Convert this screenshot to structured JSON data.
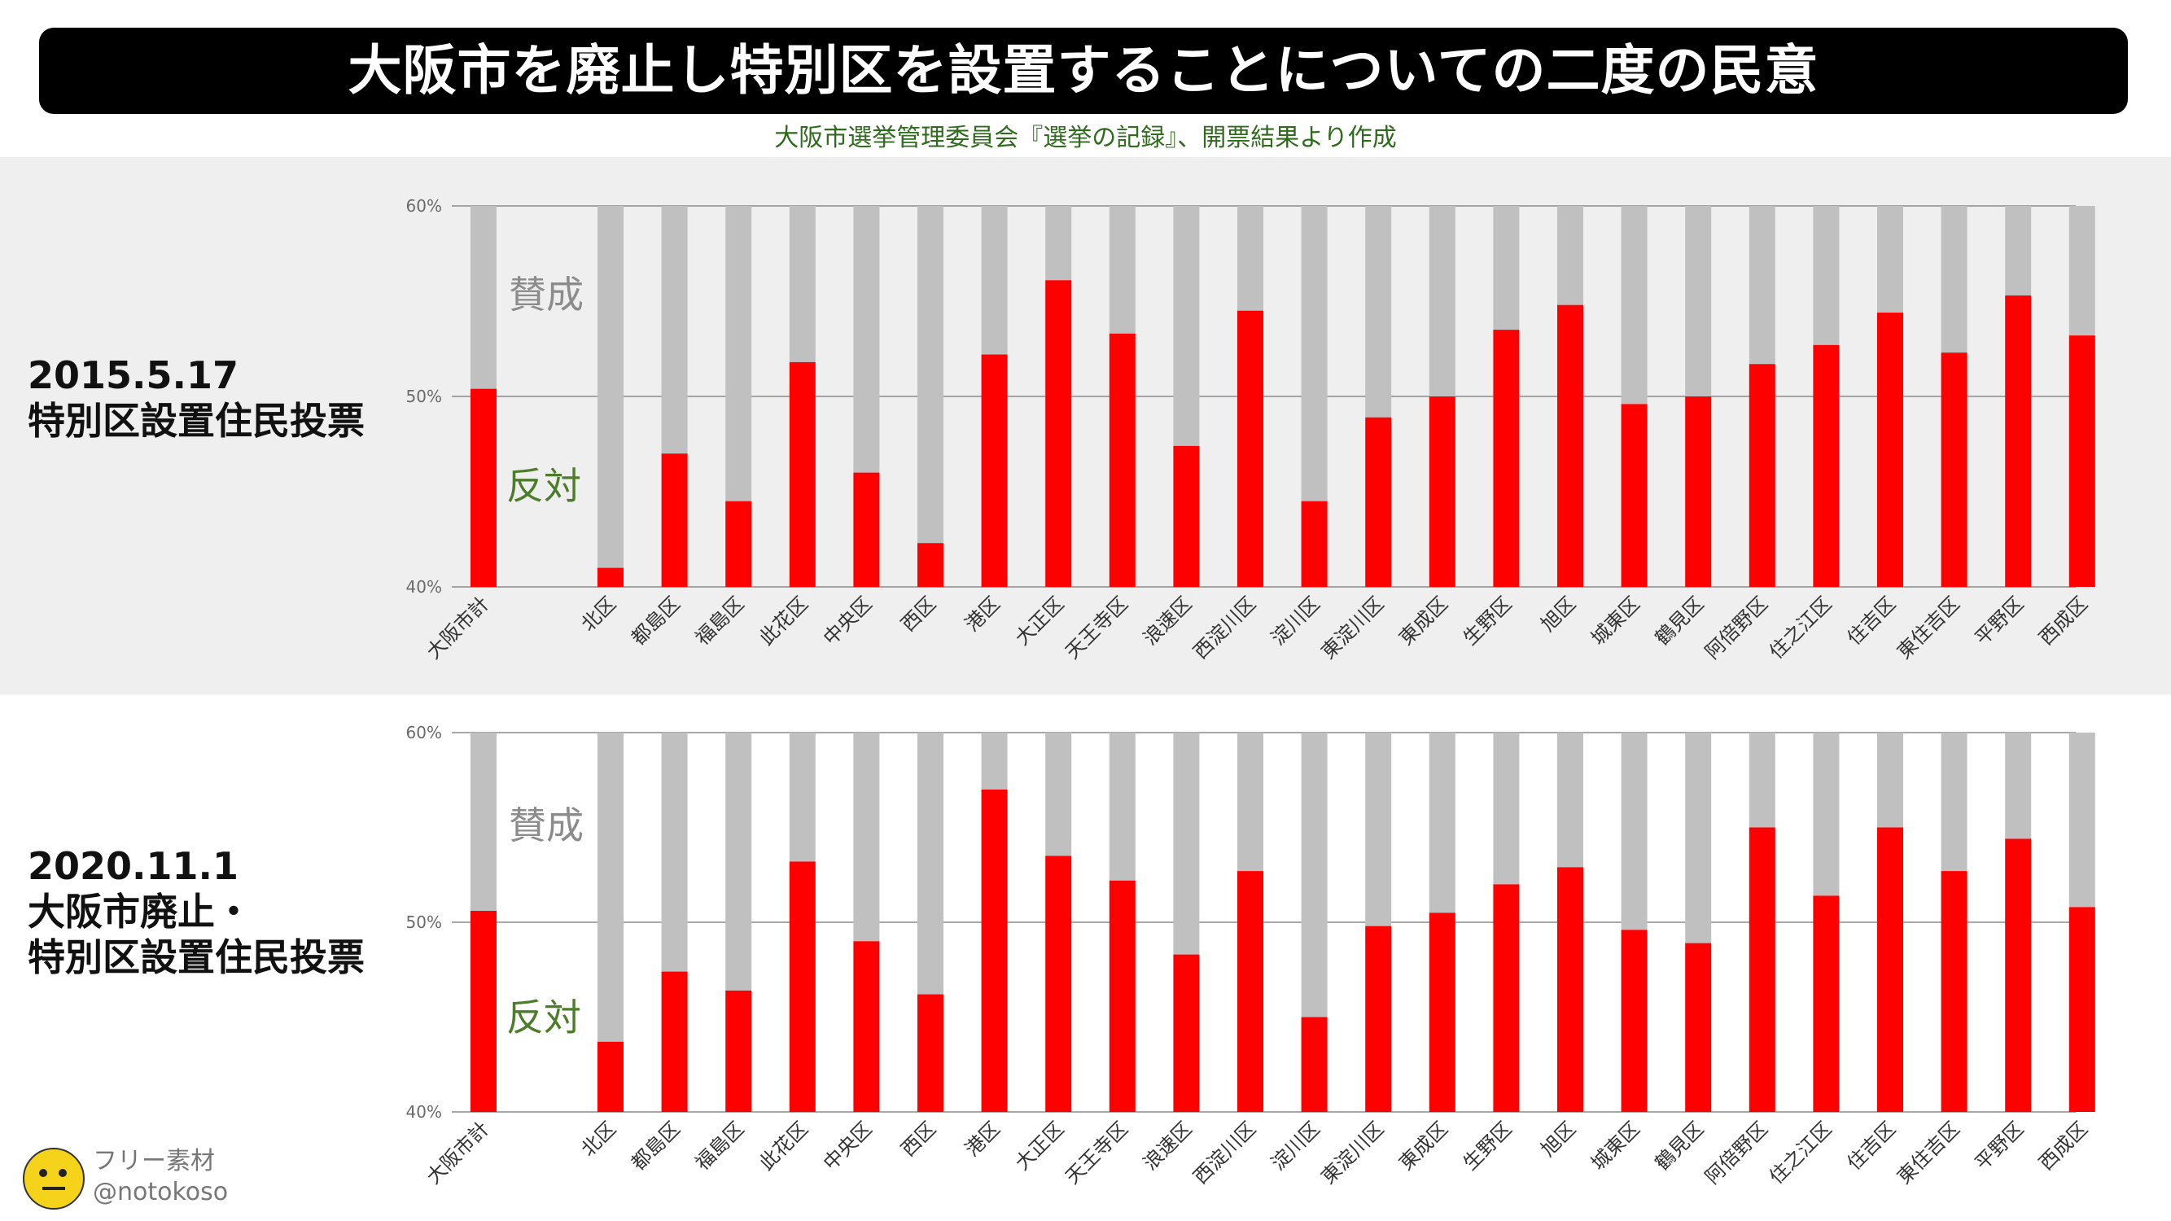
{
  "title": "大阪市を廃止し特別区を設置することについての二度の民意",
  "subtitle": "大阪市選挙管理委員会『選挙の記録』、開票結果より作成",
  "footer": {
    "line1": "フリー素材",
    "line2": "@notokoso"
  },
  "colors": {
    "against": "#ff0000",
    "for": "#c0c0c0",
    "for_label": "#8c8c8c",
    "against_label": "#4d7c2a"
  },
  "chart_data": [
    {
      "type": "bar",
      "title_lines": [
        "2015.5.17",
        "特別区設置住民投票"
      ],
      "ylim": [
        0.4,
        0.6
      ],
      "yticks": [
        "40%",
        "50%",
        "60%"
      ],
      "annotations": [
        "賛成",
        "反対"
      ],
      "categories": [
        "大阪市計",
        "北区",
        "都島区",
        "福島区",
        "此花区",
        "中央区",
        "西区",
        "港区",
        "大正区",
        "天王寺区",
        "浪速区",
        "西淀川区",
        "淀川区",
        "東淀川区",
        "東成区",
        "生野区",
        "旭区",
        "城東区",
        "鶴見区",
        "阿倍野区",
        "住之江区",
        "住吉区",
        "東住吉区",
        "平野区",
        "西成区"
      ],
      "series": [
        {
          "name": "反対",
          "values": [
            0.504,
            0.41,
            0.47,
            0.445,
            0.518,
            0.46,
            0.423,
            0.522,
            0.561,
            0.533,
            0.474,
            0.545,
            0.445,
            0.489,
            0.5,
            0.535,
            0.548,
            0.496,
            0.5,
            0.517,
            0.527,
            0.544,
            0.523,
            0.553,
            0.532
          ]
        },
        {
          "name": "賛成",
          "values": [
            0.496,
            0.59,
            0.53,
            0.555,
            0.482,
            0.54,
            0.577,
            0.478,
            0.439,
            0.467,
            0.526,
            0.455,
            0.555,
            0.511,
            0.5,
            0.465,
            0.452,
            0.504,
            0.5,
            0.483,
            0.473,
            0.456,
            0.477,
            0.447,
            0.468
          ]
        }
      ]
    },
    {
      "type": "bar",
      "title_lines": [
        "2020.11.1",
        "大阪市廃止・",
        "特別区設置住民投票"
      ],
      "ylim": [
        0.4,
        0.6
      ],
      "yticks": [
        "40%",
        "50%",
        "60%"
      ],
      "annotations": [
        "賛成",
        "反対"
      ],
      "categories": [
        "大阪市計",
        "北区",
        "都島区",
        "福島区",
        "此花区",
        "中央区",
        "西区",
        "港区",
        "大正区",
        "天王寺区",
        "浪速区",
        "西淀川区",
        "淀川区",
        "東淀川区",
        "東成区",
        "生野区",
        "旭区",
        "城東区",
        "鶴見区",
        "阿倍野区",
        "住之江区",
        "住吉区",
        "東住吉区",
        "平野区",
        "西成区"
      ],
      "series": [
        {
          "name": "反対",
          "values": [
            0.506,
            0.437,
            0.474,
            0.464,
            0.532,
            0.49,
            0.462,
            0.57,
            0.535,
            0.522,
            0.483,
            0.527,
            0.45,
            0.498,
            0.505,
            0.52,
            0.529,
            0.496,
            0.489,
            0.55,
            0.514,
            0.55,
            0.527,
            0.544,
            0.508
          ]
        },
        {
          "name": "賛成",
          "values": [
            0.494,
            0.563,
            0.526,
            0.536,
            0.468,
            0.51,
            0.538,
            0.43,
            0.465,
            0.478,
            0.517,
            0.473,
            0.55,
            0.502,
            0.495,
            0.48,
            0.471,
            0.504,
            0.511,
            0.45,
            0.486,
            0.45,
            0.473,
            0.456,
            0.492
          ]
        }
      ]
    }
  ]
}
